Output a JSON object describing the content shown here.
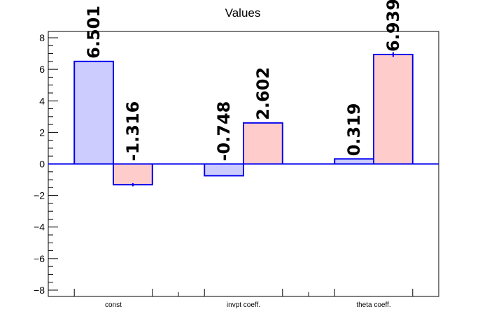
{
  "chart_data": {
    "type": "bar",
    "title": "Values",
    "categories": [
      "const",
      "invpt coeff.",
      "theta coeff."
    ],
    "series": [
      {
        "values": [
          6.501,
          -0.748,
          0.319
        ],
        "errors": [
          0.0,
          0.0,
          0.0
        ],
        "fill": "#ccccff",
        "stroke": "#0000ee"
      },
      {
        "values": [
          -1.316,
          2.602,
          6.939
        ],
        "errors": [
          0.1,
          0.0,
          0.15
        ],
        "fill": "#ffcccc",
        "stroke": "#0000ee"
      }
    ],
    "value_labels": [
      [
        "6.501",
        "-0.748",
        "0.319"
      ],
      [
        "-1.316",
        "2.602",
        "6.939"
      ]
    ],
    "ylim": [
      -8.4,
      8.4
    ],
    "yticks": [
      -8,
      -6,
      -4,
      -2,
      0,
      2,
      4,
      6,
      8
    ],
    "ytick_labels": [
      "−8",
      "−6",
      "−4",
      "−2",
      "0",
      "2",
      "4",
      "6",
      "8"
    ],
    "grid": false,
    "zero_line_color": "#0000ee"
  }
}
